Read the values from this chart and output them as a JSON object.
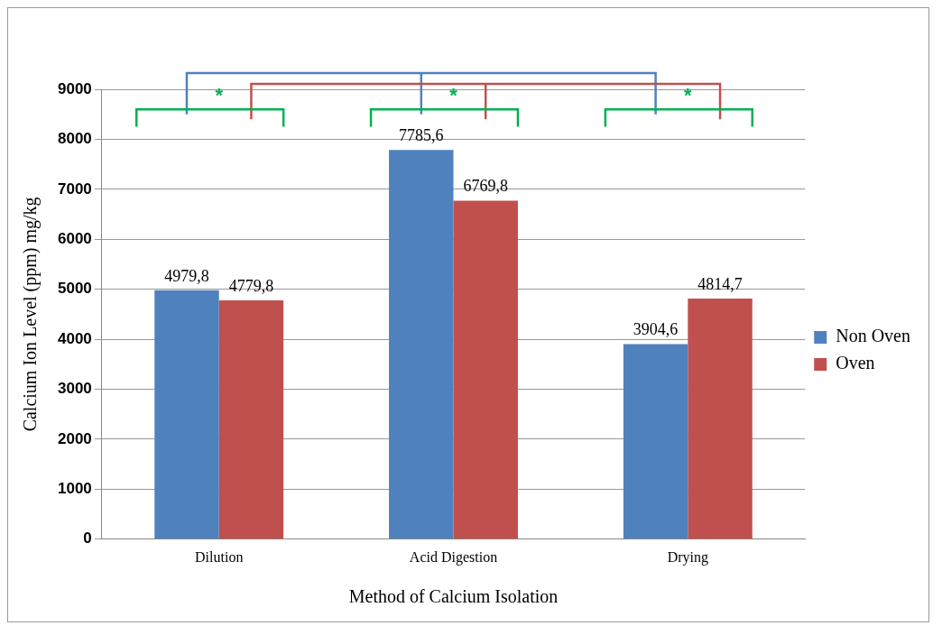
{
  "chart_data": {
    "type": "bar",
    "xlabel": "Method of Calcium Isolation",
    "ylabel": "Calcium Ion Level (ppm) mg/kg",
    "categories": [
      "Dilution",
      "Acid Digestion",
      "Drying"
    ],
    "series": [
      {
        "name": "Non Oven",
        "color": "#4f81bd",
        "values": [
          4979.8,
          7785.6,
          3904.6
        ],
        "value_labels": [
          "4979,8",
          "7785,6",
          "3904,6"
        ]
      },
      {
        "name": "Oven",
        "color": "#c0504d",
        "values": [
          4779.8,
          6769.8,
          4814.7
        ],
        "value_labels": [
          "4779,8",
          "6769,8",
          "4814,7"
        ]
      }
    ],
    "ylim": [
      0,
      9000
    ],
    "yticks": [
      0,
      1000,
      2000,
      3000,
      4000,
      5000,
      6000,
      7000,
      8000,
      9000
    ],
    "grid": "y",
    "legend": "right",
    "annotations": [
      "*",
      "*",
      "*"
    ]
  }
}
